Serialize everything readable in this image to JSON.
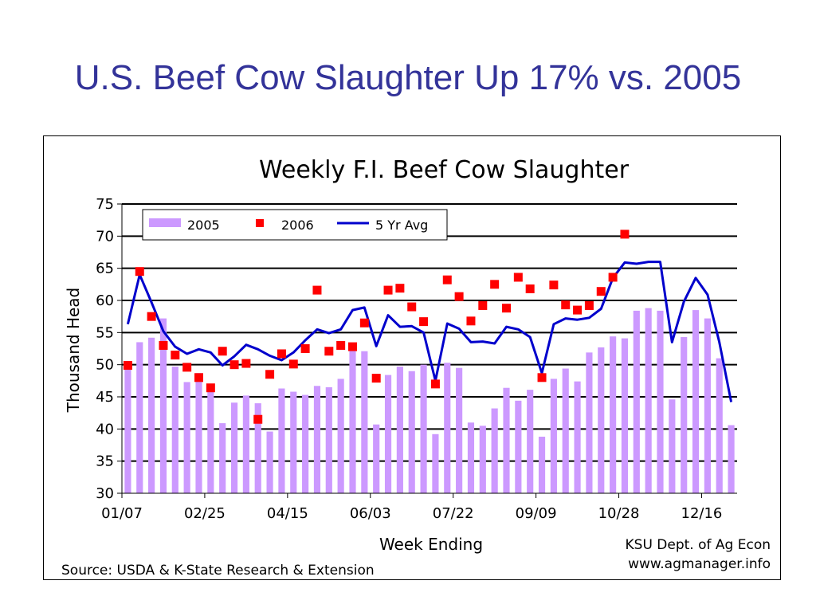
{
  "slide": {
    "title": "U.S. Beef Cow Slaughter Up 17% vs. 2005"
  },
  "chart_data": {
    "type": "bar",
    "title": "Weekly F.I. Beef Cow Slaughter",
    "xlabel": "Week Ending",
    "ylabel": "Thousand Head",
    "ylim": [
      30,
      75
    ],
    "yticks": [
      30,
      35,
      40,
      45,
      50,
      55,
      60,
      65,
      70,
      75
    ],
    "xtick_labels": [
      "01/07",
      "02/25",
      "04/15",
      "06/03",
      "07/22",
      "09/09",
      "10/28",
      "12/16"
    ],
    "legend_position": "top-left",
    "grid": true,
    "source": "Source:  USDA & K-State Research & Extension",
    "credit_line1": "KSU Dept. of Ag Econ",
    "credit_line2": "www.agmanager.info",
    "series": [
      {
        "name": "2005",
        "kind": "bar",
        "color": "#cc99ff",
        "values": [
          50.0,
          53.5,
          54.2,
          57.2,
          49.7,
          47.3,
          48.7,
          46.3,
          40.9,
          44.1,
          45.2,
          44.0,
          39.6,
          46.3,
          45.8,
          45.3,
          46.7,
          46.5,
          47.8,
          52.7,
          52.1,
          40.7,
          48.4,
          49.7,
          49.0,
          50.0,
          39.2,
          50.3,
          49.5,
          41.0,
          40.5,
          43.2,
          46.4,
          44.4,
          46.1,
          38.8,
          47.8,
          49.4,
          47.4,
          51.9,
          52.7,
          54.4,
          54.1,
          58.4,
          58.8,
          58.4,
          44.6,
          54.3,
          58.5,
          57.2,
          51.0,
          40.6
        ]
      },
      {
        "name": "2006",
        "kind": "marker",
        "color": "#ff0000",
        "values": [
          49.9,
          64.5,
          57.5,
          53.0,
          51.5,
          49.6,
          48.0,
          46.4,
          52.1,
          50.0,
          50.2,
          41.5,
          48.5,
          51.7,
          50.1,
          52.5,
          61.6,
          52.1,
          53.0,
          52.8,
          56.5,
          47.9,
          61.6,
          61.9,
          59.0,
          56.7,
          47.0,
          63.2,
          60.6,
          56.8,
          59.2,
          62.5,
          58.8,
          63.6,
          61.8,
          48.0,
          62.4,
          59.3,
          58.5,
          59.2,
          61.4,
          63.6,
          70.3
        ]
      },
      {
        "name": "5 Yr Avg",
        "kind": "line",
        "color": "#0000cc",
        "values": [
          56.3,
          64.0,
          59.7,
          55.2,
          52.8,
          51.7,
          52.4,
          51.9,
          49.9,
          51.3,
          53.1,
          52.4,
          51.4,
          50.7,
          51.9,
          53.8,
          55.5,
          54.9,
          55.5,
          58.5,
          58.9,
          52.9,
          57.7,
          55.9,
          56.0,
          55.0,
          47.5,
          56.4,
          55.6,
          53.5,
          53.6,
          53.3,
          55.9,
          55.5,
          54.3,
          48.7,
          56.3,
          57.2,
          57.0,
          57.3,
          58.7,
          63.5,
          65.9,
          65.7,
          66.0,
          66.0,
          53.5,
          59.8,
          63.5,
          60.9,
          53.5,
          44.2
        ]
      }
    ]
  }
}
